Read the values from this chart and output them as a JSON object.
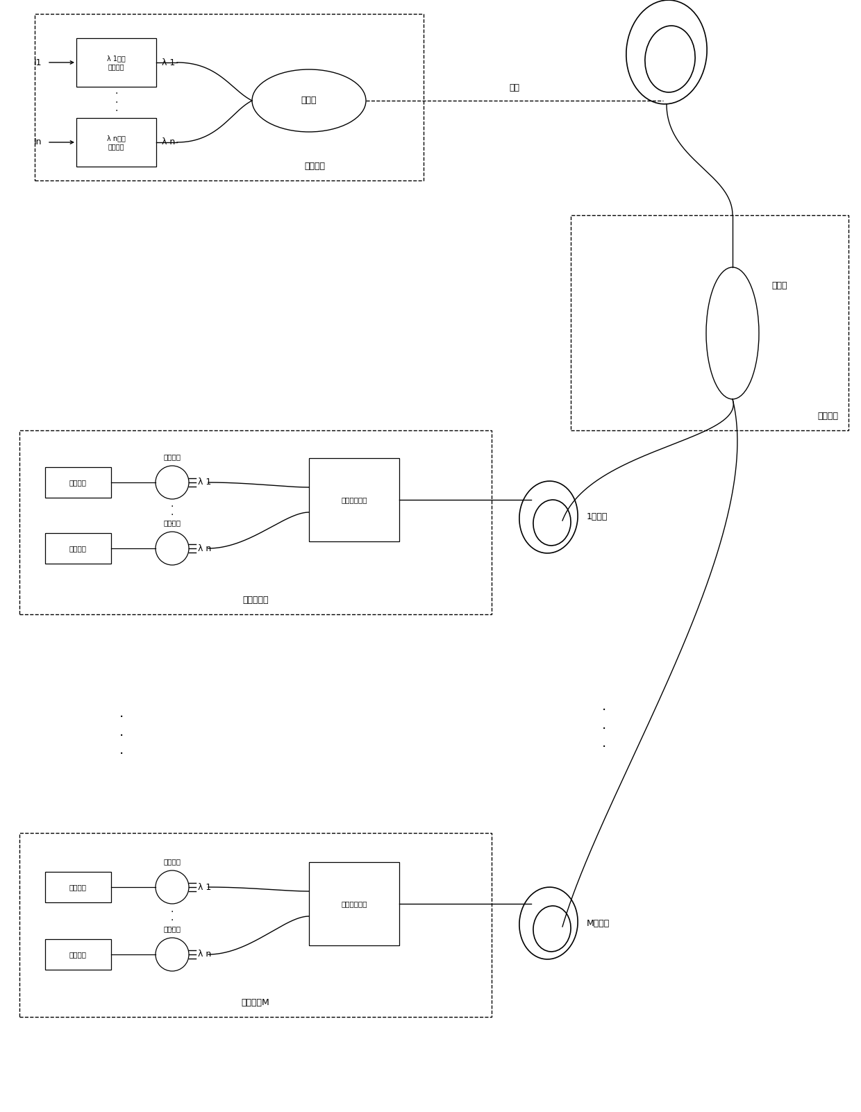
{
  "fig_width": 12.4,
  "fig_height": 16.02,
  "bg_color": "#ffffff",
  "lc": "#000000",
  "tc": "#000000",
  "transmit_label": "发送单元",
  "coupler1_label": "耦合器",
  "fiber_label": "光纤",
  "dist_label": "分配单元",
  "coupler2_label": "耦合器",
  "recv1_label": "接收单元１",
  "recv1_channel": "1号通道",
  "recvM_label": "接收单元M",
  "recvM_channel": "M号通道",
  "tx1_label": "λ 1波长\n光发射机",
  "txn_label": "λ n波长\n光发射机",
  "lambda1_tx": "λ 1",
  "lambdan_tx": "λ n",
  "lambda1_rx": "λ 1",
  "lambdan_rx": "λ n",
  "I1_label": "I1",
  "In_label": "In",
  "optical_mux_label": "光波分复用器",
  "detect_label": "检测电路",
  "charge_sw_label": "光电开关"
}
